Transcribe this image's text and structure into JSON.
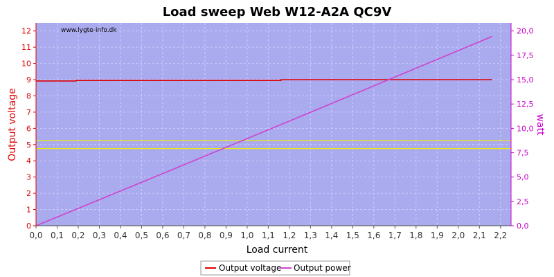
{
  "chart_data": {
    "type": "line",
    "title": "Load sweep Web W12-A2A QC9V",
    "watermark": "www.lygte-info.dk",
    "xlabel": "Load current",
    "ylabel_left": "Output voltage",
    "ylabel_right": "watt",
    "xlim": [
      0,
      2.25
    ],
    "ylim_left": [
      0,
      12.5
    ],
    "ylim_right": [
      0,
      20.833
    ],
    "x_ticks": [
      "0,0",
      "0,1",
      "0,2",
      "0,3",
      "0,4",
      "0,5",
      "0,6",
      "0,7",
      "0,8",
      "0,9",
      "1,0",
      "1,1",
      "1,2",
      "1,3",
      "1,4",
      "1,5",
      "1,6",
      "1,7",
      "1,8",
      "1,9",
      "2,0",
      "2,1",
      "2,2"
    ],
    "y_left_ticks": [
      "0",
      "1",
      "2",
      "3",
      "4",
      "5",
      "6",
      "7",
      "8",
      "9",
      "10",
      "11",
      "12"
    ],
    "y_right_ticks": [
      "0,0",
      "2,5",
      "5,0",
      "7,5",
      "10,0",
      "12,5",
      "15,0",
      "17,5",
      "20,0"
    ],
    "grid": true,
    "legend_placement": "bottom-center",
    "reference_lines_voltage": [
      4.75,
      5.25
    ],
    "series": [
      {
        "name": "Output voltage",
        "axis": "left",
        "color": "#dd0000",
        "x": [
          0.0,
          0.19,
          0.19,
          1.16,
          1.16,
          2.16
        ],
        "y": [
          8.92,
          8.92,
          8.95,
          8.95,
          9.0,
          9.0
        ]
      },
      {
        "name": "Output power",
        "axis": "right",
        "color": "#cc44cc",
        "x": [
          0.0,
          0.5,
          1.0,
          1.5,
          2.16
        ],
        "y": [
          0.0,
          4.46,
          8.95,
          13.45,
          19.44
        ]
      }
    ],
    "colors": {
      "plot_bg": "#aaaaee",
      "grid": "#ccccff",
      "reference": "#eeee00",
      "left_axis": "#dd0000",
      "right_axis": "#cc00cc"
    }
  }
}
